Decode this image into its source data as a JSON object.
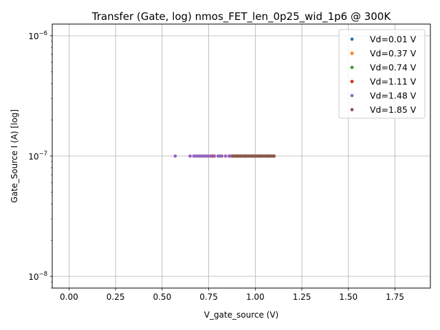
{
  "chart_data": {
    "type": "scatter",
    "title": "Transfer (Gate, log) nmos_FET_len_0p25_wid_1p6 @ 300K",
    "xlabel": "V_gate_source (V)",
    "ylabel": "Gate_Source I (A) [log]",
    "xlim": [
      -0.09,
      1.94
    ],
    "ylim": [
      8e-09,
      1.25e-06
    ],
    "yscale": "log",
    "grid": true,
    "legend_position": "top-right",
    "x_ticks": [
      {
        "value": 0.0,
        "label": "0.00"
      },
      {
        "value": 0.25,
        "label": "0.25"
      },
      {
        "value": 0.5,
        "label": "0.50"
      },
      {
        "value": 0.75,
        "label": "0.75"
      },
      {
        "value": 1.0,
        "label": "1.00"
      },
      {
        "value": 1.25,
        "label": "1.25"
      },
      {
        "value": 1.5,
        "label": "1.50"
      },
      {
        "value": 1.75,
        "label": "1.75"
      }
    ],
    "y_ticks": [
      {
        "value": 1e-08,
        "base": "10",
        "exp": "−8"
      },
      {
        "value": 1e-07,
        "base": "10",
        "exp": "−7"
      },
      {
        "value": 1e-06,
        "base": "10",
        "exp": "−6"
      }
    ],
    "series": [
      {
        "name": "Vd=0.01 V",
        "color": "#1f77b4",
        "points": [
          [
            0.88,
            1e-07
          ],
          [
            0.92,
            1e-07
          ],
          [
            0.96,
            1e-07
          ],
          [
            1.0,
            1e-07
          ],
          [
            1.04,
            1e-07
          ],
          [
            1.08,
            1e-07
          ],
          [
            1.1,
            1e-07
          ]
        ]
      },
      {
        "name": "Vd=0.37 V",
        "color": "#ff7f0e",
        "points": [
          [
            0.86,
            1e-07
          ],
          [
            0.9,
            1e-07
          ],
          [
            0.94,
            1e-07
          ],
          [
            0.98,
            1e-07
          ],
          [
            1.02,
            1e-07
          ],
          [
            1.06,
            1e-07
          ],
          [
            1.1,
            1e-07
          ]
        ]
      },
      {
        "name": "Vd=0.74 V",
        "color": "#2ca02c",
        "points": [
          [
            0.88,
            1e-07
          ],
          [
            0.91,
            1e-07
          ],
          [
            0.95,
            1e-07
          ],
          [
            0.99,
            1e-07
          ],
          [
            1.03,
            1e-07
          ],
          [
            1.07,
            1e-07
          ],
          [
            1.1,
            1e-07
          ]
        ]
      },
      {
        "name": "Vd=1.11 V",
        "color": "#d62728",
        "points": [
          [
            0.77,
            1e-07
          ],
          [
            0.78,
            1e-07
          ],
          [
            0.82,
            1e-07
          ],
          [
            0.86,
            1e-07
          ],
          [
            0.9,
            1e-07
          ],
          [
            0.94,
            1e-07
          ],
          [
            0.98,
            1e-07
          ],
          [
            1.02,
            1e-07
          ],
          [
            1.06,
            1e-07
          ],
          [
            1.1,
            1e-07
          ]
        ]
      },
      {
        "name": "Vd=1.48 V",
        "color": "#9467bd",
        "points": [
          [
            0.57,
            1e-07
          ],
          [
            0.65,
            1e-07
          ],
          [
            0.67,
            1e-07
          ],
          [
            0.68,
            1e-07
          ],
          [
            0.69,
            1e-07
          ],
          [
            0.7,
            1e-07
          ],
          [
            0.71,
            1e-07
          ],
          [
            0.72,
            1e-07
          ],
          [
            0.73,
            1e-07
          ],
          [
            0.74,
            1e-07
          ],
          [
            0.75,
            1e-07
          ],
          [
            0.76,
            1e-07
          ],
          [
            0.78,
            1e-07
          ],
          [
            0.8,
            1e-07
          ],
          [
            0.81,
            1e-07
          ],
          [
            0.82,
            1e-07
          ],
          [
            0.84,
            1e-07
          ],
          [
            0.86,
            1e-07
          ],
          [
            0.87,
            1e-07
          ]
        ]
      },
      {
        "name": "Vd=1.85 V",
        "color": "#8c564b",
        "points": [
          [
            0.88,
            1e-07
          ],
          [
            0.89,
            1e-07
          ],
          [
            0.9,
            1e-07
          ],
          [
            0.91,
            1e-07
          ],
          [
            0.92,
            1e-07
          ],
          [
            0.93,
            1e-07
          ],
          [
            0.94,
            1e-07
          ],
          [
            0.95,
            1e-07
          ],
          [
            0.96,
            1e-07
          ],
          [
            0.97,
            1e-07
          ],
          [
            0.98,
            1e-07
          ],
          [
            0.99,
            1e-07
          ],
          [
            1.0,
            1e-07
          ],
          [
            1.01,
            1e-07
          ],
          [
            1.02,
            1e-07
          ],
          [
            1.03,
            1e-07
          ],
          [
            1.04,
            1e-07
          ],
          [
            1.05,
            1e-07
          ],
          [
            1.06,
            1e-07
          ],
          [
            1.07,
            1e-07
          ],
          [
            1.08,
            1e-07
          ],
          [
            1.09,
            1e-07
          ],
          [
            1.1,
            1e-07
          ]
        ]
      }
    ]
  }
}
